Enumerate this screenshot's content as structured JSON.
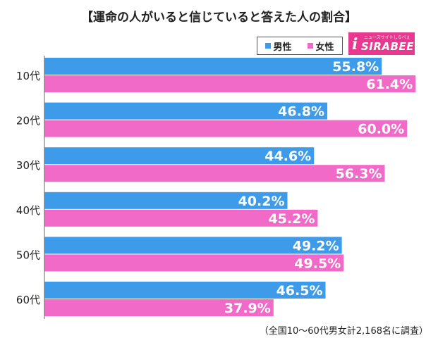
{
  "title": "【運命の人がいると信じていると答えた人の割合】",
  "legend": {
    "male": "男性",
    "female": "女性"
  },
  "logo": {
    "tagline": "ニュースサイトしらべぇ",
    "name": "SIRABEE",
    "mark": "i"
  },
  "footer": "（全国10～60代男女計2,168名に調査）",
  "colors": {
    "male": "#3d9be9",
    "female": "#f26ac7"
  },
  "chart_data": {
    "type": "bar",
    "orientation": "horizontal",
    "categories": [
      "10代",
      "20代",
      "30代",
      "40代",
      "50代",
      "60代"
    ],
    "series": [
      {
        "name": "男性",
        "values": [
          55.8,
          46.8,
          44.6,
          40.2,
          49.2,
          46.5
        ]
      },
      {
        "name": "女性",
        "values": [
          61.4,
          60.0,
          56.3,
          45.2,
          49.5,
          37.9
        ]
      }
    ],
    "value_format": "percent_one_decimal",
    "xlim": [
      0,
      100
    ],
    "grid": false
  }
}
